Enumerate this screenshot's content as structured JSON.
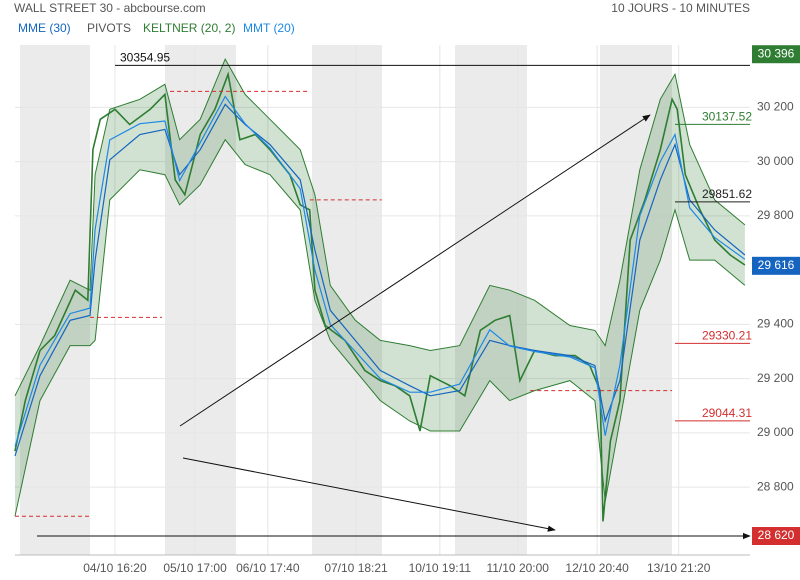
{
  "chart_data": {
    "type": "line",
    "title": "WALL STREET 30 - abcbourse.com",
    "subtitle": "10 JOURS - 10 MINUTES",
    "xlim": [
      0,
      100
    ],
    "xticks": [
      {
        "value": 13.6,
        "label": "04/10 16:20"
      },
      {
        "value": 24.5,
        "label": "05/10 17:00"
      },
      {
        "value": 34.4,
        "label": "06/10 17:40"
      },
      {
        "value": 46.4,
        "label": "07/10 18:21"
      },
      {
        "value": 57.8,
        "label": "10/10 19:11"
      },
      {
        "value": 68.4,
        "label": "11/10 20:00"
      },
      {
        "value": 79.2,
        "label": "12/10 20:40"
      },
      {
        "value": 90.3,
        "label": "13/10 21:20"
      }
    ],
    "ylim": [
      28550,
      30430
    ],
    "yticks": [
      {
        "value": 30200,
        "label": "30 200"
      },
      {
        "value": 30000,
        "label": "30 000"
      },
      {
        "value": 29800,
        "label": "29 800"
      },
      {
        "value": 29400,
        "label": "29 400"
      },
      {
        "value": 29200,
        "label": "29 200"
      },
      {
        "value": 29000,
        "label": "29 000"
      },
      {
        "value": 28800,
        "label": "28 800"
      }
    ],
    "grid": true,
    "price": {
      "color": "#2e7d32",
      "x": [
        0,
        1.4,
        3.4,
        5.4,
        8.2,
        9.9,
        10.6,
        11.6,
        13.6,
        15.6,
        18.4,
        20.4,
        21.8,
        23.1,
        25.2,
        27.2,
        29.0,
        30.6,
        32.7,
        34.7,
        37.4,
        38.8,
        40.1,
        40.8,
        42.2,
        44.9,
        47.6,
        49.7,
        51.7,
        53.7,
        55.1,
        56.5,
        59.2,
        61.2,
        63.3,
        65.3,
        67.3,
        68.7,
        70.7,
        73.5,
        76.2,
        78.2,
        79.6,
        80.0,
        81.0,
        82.3,
        83.7,
        85.7,
        87.8,
        89.4,
        90.1,
        91.2,
        93.2,
        95.2,
        97.3,
        99.3
      ],
      "values": [
        28933,
        29119,
        29304,
        29359,
        29526,
        29489,
        30044,
        30156,
        30193,
        30137,
        30193,
        30248,
        29933,
        29878,
        30100,
        30193,
        30322,
        30081,
        30100,
        30044,
        29952,
        29841,
        29822,
        29526,
        29396,
        29341,
        29230,
        29193,
        29174,
        29137,
        29007,
        29211,
        29174,
        29137,
        29378,
        29415,
        29433,
        29193,
        29304,
        29285,
        29285,
        29248,
        29156,
        28674,
        28970,
        29119,
        29711,
        29859,
        30044,
        30230,
        30193,
        29952,
        29822,
        29711,
        29656,
        29619
      ]
    },
    "series": [
      {
        "name": "MME (30)",
        "color": "#1565c0",
        "x": [
          0,
          3.4,
          7.5,
          10.2,
          10.9,
          12.9,
          17.0,
          20.4,
          22.4,
          25.2,
          28.6,
          31.3,
          34.7,
          38.8,
          40.8,
          42.9,
          46.3,
          49.7,
          53.7,
          56.5,
          60.5,
          64.6,
          67.3,
          70.7,
          75.5,
          78.9,
          80.3,
          82.3,
          85.0,
          87.8,
          89.8,
          91.8,
          95.2,
          99.3
        ],
        "values": [
          28915,
          29211,
          29415,
          29433,
          29637,
          30007,
          30100,
          30119,
          29952,
          30044,
          30211,
          30137,
          30063,
          29933,
          29674,
          29452,
          29341,
          29230,
          29174,
          29137,
          29156,
          29341,
          29322,
          29304,
          29285,
          29248,
          29044,
          29193,
          29711,
          29933,
          30063,
          29859,
          29748,
          29656
        ]
      },
      {
        "name": "KELTNER (20, 2)",
        "color": "#2e7d32",
        "x": [
          0,
          3.4,
          7.5,
          10.2,
          10.9,
          12.9,
          17.0,
          20.4,
          22.4,
          25.2,
          28.6,
          31.3,
          34.7,
          38.8,
          40.8,
          42.9,
          46.3,
          49.7,
          53.7,
          56.5,
          60.5,
          64.6,
          67.3,
          70.7,
          75.5,
          78.9,
          80.3,
          82.3,
          85.0,
          87.8,
          89.8,
          91.8,
          95.2,
          99.3
        ],
        "upper": [
          29137,
          29322,
          29563,
          29526,
          29952,
          30193,
          30230,
          30285,
          30081,
          30156,
          30378,
          30248,
          30156,
          30044,
          29878,
          29544,
          29415,
          29341,
          29322,
          29304,
          29322,
          29544,
          29526,
          29489,
          29396,
          29378,
          29322,
          29563,
          29970,
          30230,
          30322,
          30063,
          29859,
          29767
        ],
        "lower": [
          28693,
          29119,
          29322,
          29322,
          29341,
          29859,
          29970,
          29952,
          29841,
          29915,
          30081,
          29989,
          29952,
          29822,
          29489,
          29341,
          29230,
          29119,
          29044,
          29007,
          29007,
          29193,
          29119,
          29156,
          29193,
          29119,
          28748,
          29044,
          29452,
          29637,
          29822,
          29637,
          29637,
          29544
        ]
      },
      {
        "name": "MMT (20)",
        "color": "#1e88e5",
        "x": [
          0,
          3.4,
          7.5,
          10.2,
          10.9,
          12.9,
          17.0,
          20.4,
          22.4,
          25.2,
          28.6,
          31.3,
          34.7,
          38.8,
          40.8,
          42.9,
          46.3,
          49.7,
          53.7,
          56.5,
          60.5,
          64.6,
          67.3,
          70.7,
          75.5,
          78.9,
          80.3,
          82.3,
          85.0,
          87.8,
          89.8,
          91.8,
          95.2,
          99.3
        ],
        "values": [
          28950,
          29250,
          29440,
          29460,
          29750,
          30080,
          30140,
          30150,
          29930,
          30070,
          30240,
          30140,
          30050,
          29900,
          29600,
          29400,
          29300,
          29200,
          29150,
          29150,
          29180,
          29380,
          29320,
          29300,
          29280,
          29240,
          28990,
          29250,
          29800,
          30000,
          30100,
          29830,
          29720,
          29640
        ]
      }
    ],
    "pivots": {
      "name": "PIVOTS",
      "color": "#d32f2f",
      "segments": [
        {
          "x": [
            0,
            10.2
          ],
          "value": 28693
        },
        {
          "x": [
            10.2,
            20.0
          ],
          "value": 29426
        },
        {
          "x": [
            21.1,
            40.1
          ],
          "value": 30259
        },
        {
          "x": [
            40.1,
            49.9
          ],
          "value": 29859
        },
        {
          "x": [
            70.1,
            89.4
          ],
          "value": 29156
        }
      ]
    },
    "high_line": {
      "value": 30354.95
    },
    "labeled_levels": [
      {
        "value": 30137.52,
        "color": "#2e7d32"
      },
      {
        "value": 29851.62,
        "color": "#222222"
      },
      {
        "value": 29330.21,
        "color": "#d32f2f"
      },
      {
        "value": 29044.31,
        "color": "#d32f2f"
      }
    ],
    "price_badges": [
      {
        "value": 30396,
        "label": "30 396",
        "color": "#2e7d32"
      },
      {
        "value": 29616,
        "label": "29 616",
        "color": "#1565c0"
      },
      {
        "value": 28620,
        "label": "28 620",
        "color": "#d32f2f"
      }
    ]
  }
}
